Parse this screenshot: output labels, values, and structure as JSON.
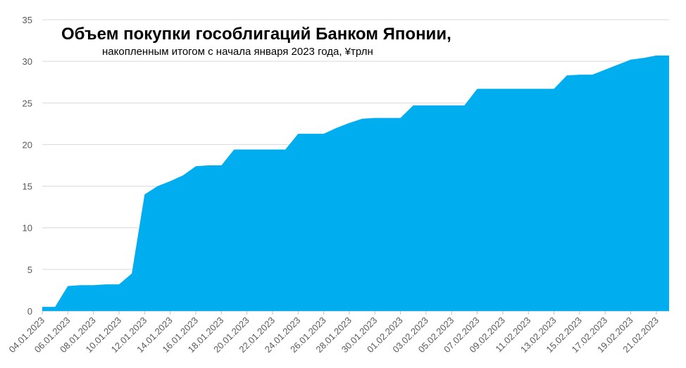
{
  "chart_data": {
    "type": "area",
    "title": "Объем покупки гособлигаций Банком Японии,",
    "subtitle": "накопленным итогом с начала января 2023 года, ¥трлн",
    "xlabel": "",
    "ylabel": "",
    "ylim": [
      0,
      35
    ],
    "yticks": [
      0,
      5,
      10,
      15,
      20,
      25,
      30,
      35
    ],
    "grid": true,
    "color": "#00AEEF",
    "x_tick_labels": [
      "04.01.2023",
      "06.01.2023",
      "08.01.2023",
      "10.01.2023",
      "12.01.2023",
      "14.01.2023",
      "16.01.2023",
      "18.01.2023",
      "20.01.2023",
      "22.01.2023",
      "24.01.2023",
      "26.01.2023",
      "28.01.2023",
      "30.01.2023",
      "01.02.2023",
      "03.02.2023",
      "05.02.2023",
      "07.02.2023",
      "09.02.2023",
      "11.02.2023",
      "13.02.2023",
      "15.02.2023",
      "17.02.2023",
      "19.02.2023",
      "21.02.2023"
    ],
    "x": [
      "04.01.2023",
      "05.01.2023",
      "06.01.2023",
      "07.01.2023",
      "08.01.2023",
      "09.01.2023",
      "10.01.2023",
      "11.01.2023",
      "12.01.2023",
      "13.01.2023",
      "14.01.2023",
      "15.01.2023",
      "16.01.2023",
      "17.01.2023",
      "18.01.2023",
      "19.01.2023",
      "20.01.2023",
      "21.01.2023",
      "22.01.2023",
      "23.01.2023",
      "24.01.2023",
      "25.01.2023",
      "26.01.2023",
      "27.01.2023",
      "28.01.2023",
      "29.01.2023",
      "30.01.2023",
      "31.01.2023",
      "01.02.2023",
      "02.02.2023",
      "03.02.2023",
      "04.02.2023",
      "05.02.2023",
      "06.02.2023",
      "07.02.2023",
      "08.02.2023",
      "09.02.2023",
      "10.02.2023",
      "11.02.2023",
      "12.02.2023",
      "13.02.2023",
      "14.02.2023",
      "15.02.2023",
      "16.02.2023",
      "17.02.2023",
      "18.02.2023",
      "19.02.2023",
      "20.02.2023",
      "21.02.2023",
      "22.02.2023"
    ],
    "values": [
      0.5,
      0.5,
      3.0,
      3.1,
      3.1,
      3.2,
      3.2,
      4.5,
      14.0,
      15.0,
      15.6,
      16.3,
      17.4,
      17.5,
      17.5,
      19.4,
      19.4,
      19.4,
      19.4,
      19.4,
      21.3,
      21.3,
      21.3,
      22.0,
      22.6,
      23.1,
      23.2,
      23.2,
      23.2,
      24.7,
      24.7,
      24.7,
      24.7,
      24.7,
      26.7,
      26.7,
      26.7,
      26.7,
      26.7,
      26.7,
      26.7,
      28.3,
      28.4,
      28.4,
      29.0,
      29.6,
      30.2,
      30.4,
      30.7,
      30.7
    ]
  }
}
